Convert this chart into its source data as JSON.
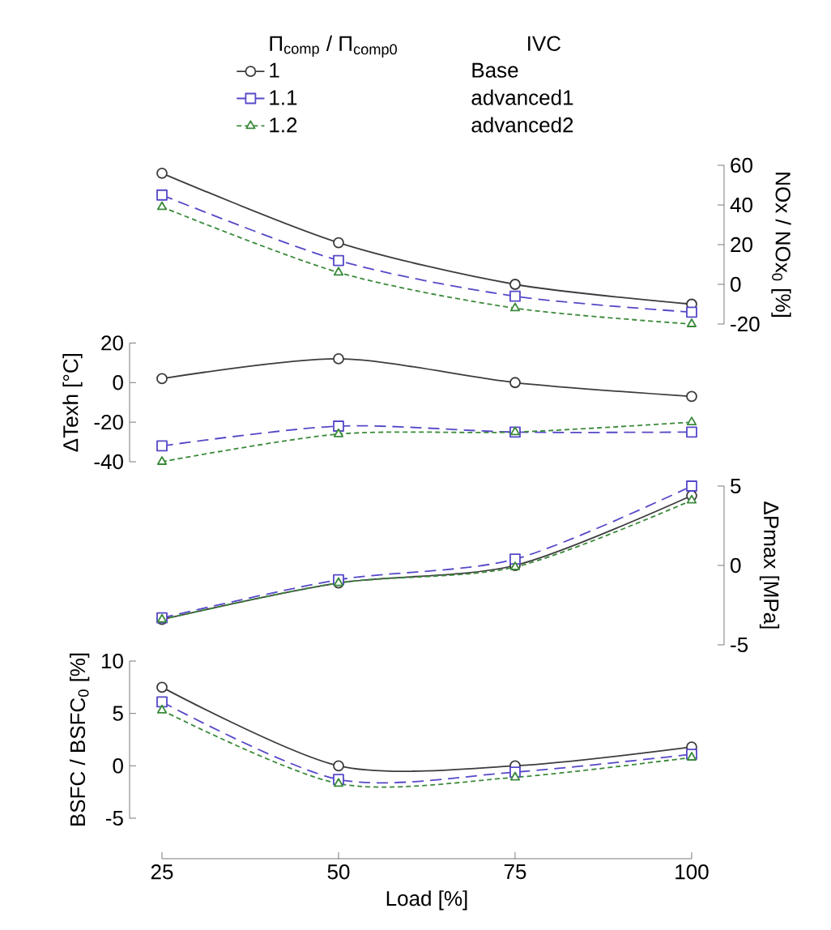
{
  "chart_data": [
    {
      "type": "line",
      "x": [
        25,
        50,
        75,
        100
      ],
      "xlim": [
        25,
        100
      ],
      "xticks": [
        25,
        50,
        75,
        100
      ],
      "ylim": [
        -20,
        60
      ],
      "yticks": [
        -20,
        0,
        20,
        40,
        60
      ],
      "ylabel": "NOx / NOx$_{0}$ [%]",
      "tick_labels": "y",
      "legend": "top",
      "legend_title": "Π$_{comp}$ / Π$_{comp0}$",
      "annotations": [
        "IVC",
        "Base",
        "advanced1",
        "advanced2"
      ],
      "series": [
        {
          "name": "1",
          "color": "#3c3c3c",
          "marker": "circle",
          "line_style": "solid",
          "values": [
            56,
            21,
            0,
            -10
          ]
        },
        {
          "name": "1.1",
          "color": "#5548c8",
          "marker": "square",
          "line_style": "dashed",
          "values": [
            45,
            12,
            -6,
            -14
          ]
        },
        {
          "name": "1.2",
          "color": "#3a8a3a",
          "marker": "triangle",
          "line_style": "dotted",
          "values": [
            39,
            6,
            -12,
            -20
          ]
        }
      ]
    },
    {
      "type": "line",
      "x": [
        25,
        50,
        75,
        100
      ],
      "xlim": [
        25,
        100
      ],
      "xticks": [
        25,
        50,
        75,
        100
      ],
      "ylim": [
        -40,
        20
      ],
      "yticks": [
        -40,
        -20,
        0,
        20
      ],
      "ylabel": "ΔTexh [°C]",
      "tick_labels": "y",
      "series": [
        {
          "color": "#3c3c3c",
          "marker": "circle",
          "line_style": "solid",
          "values": [
            2,
            12,
            0,
            -7
          ]
        },
        {
          "color": "#5548c8",
          "marker": "square",
          "line_style": "dashed",
          "values": [
            -32,
            -22,
            -25,
            -25
          ]
        },
        {
          "color": "#3a8a3a",
          "marker": "triangle",
          "line_style": "dotted",
          "values": [
            -40,
            -26,
            -25,
            -20
          ]
        }
      ]
    },
    {
      "type": "line",
      "x": [
        25,
        50,
        75,
        100
      ],
      "xlim": [
        25,
        100
      ],
      "xticks": [
        25,
        50,
        75,
        100
      ],
      "ylim": [
        -5,
        5
      ],
      "yticks": [
        -5,
        0,
        5
      ],
      "ylabel": "ΔPmax [MPa]",
      "tick_labels": "y",
      "series": [
        {
          "color": "#3c3c3c",
          "marker": "circle",
          "line_style": "solid",
          "values": [
            -3.4,
            -1.1,
            0,
            4.4
          ]
        },
        {
          "color": "#5548c8",
          "marker": "square",
          "line_style": "dashed",
          "values": [
            -3.3,
            -0.9,
            0.4,
            5.0
          ]
        },
        {
          "color": "#3a8a3a",
          "marker": "triangle",
          "line_style": "dotted",
          "values": [
            -3.4,
            -1.1,
            -0.1,
            4.1
          ]
        }
      ]
    },
    {
      "type": "line",
      "x": [
        25,
        50,
        75,
        100
      ],
      "xlim": [
        25,
        100
      ],
      "xticks": [
        25,
        50,
        75,
        100
      ],
      "ylim": [
        -5,
        10
      ],
      "yticks": [
        -5,
        0,
        5,
        10
      ],
      "ylabel": "BSFC / BSFC$_{0}$ [%]",
      "xlabel": "Load [%]",
      "series": [
        {
          "color": "#3c3c3c",
          "marker": "circle",
          "line_style": "solid",
          "values": [
            7.5,
            0,
            0,
            1.8
          ]
        },
        {
          "color": "#5548c8",
          "marker": "square",
          "line_style": "dashed",
          "values": [
            6.1,
            -1.3,
            -0.6,
            1.1
          ]
        },
        {
          "color": "#3a8a3a",
          "marker": "triangle",
          "line_style": "dotted",
          "values": [
            5.3,
            -1.7,
            -1.1,
            0.8
          ]
        }
      ]
    }
  ]
}
